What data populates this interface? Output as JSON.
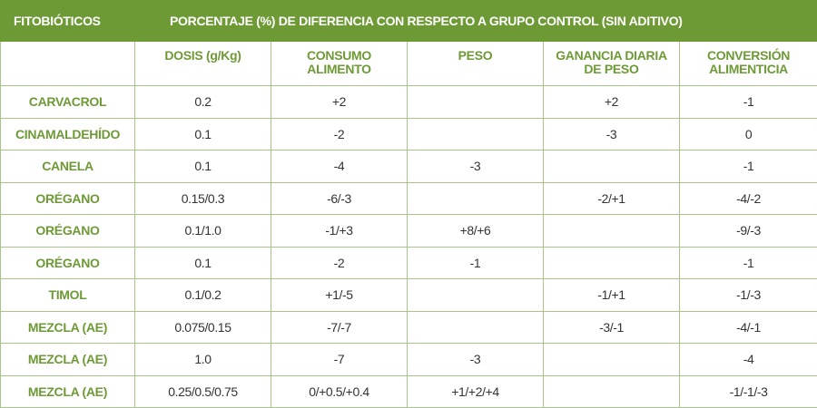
{
  "header": {
    "col0": "FITOBIÓTICOS",
    "span": "PORCENTAJE (%) DE DIFERENCIA CON RESPECTO A GRUPO CONTROL (SIN ADITIVO)"
  },
  "subheader": {
    "dosis": "DOSIS (g/Kg)",
    "consumo_l1": "CONSUMO",
    "consumo_l2": "ALIMENTO",
    "peso": "PESO",
    "ganancia_l1": "GANANCIA DIARIA",
    "ganancia_l2": "DE PESO",
    "conversion_l1": "CONVERSIÓN",
    "conversion_l2": "ALIMENTICIA"
  },
  "rows": [
    {
      "name": "CARVACROL",
      "dosis": "0.2",
      "consumo": "+2",
      "peso": "",
      "ganancia": "+2",
      "conversion": "-1"
    },
    {
      "name": "CINAMALDEHÍDO",
      "dosis": "0.1",
      "consumo": "-2",
      "peso": "",
      "ganancia": "-3",
      "conversion": "0"
    },
    {
      "name": "CANELA",
      "dosis": "0.1",
      "consumo": "-4",
      "peso": "-3",
      "ganancia": "",
      "conversion": "-1"
    },
    {
      "name": "ORÉGANO",
      "dosis": "0.15/0.3",
      "consumo": "-6/-3",
      "peso": "",
      "ganancia": "-2/+1",
      "conversion": "-4/-2"
    },
    {
      "name": "ORÉGANO",
      "dosis": "0.1/1.0",
      "consumo": "-1/+3",
      "peso": "+8/+6",
      "ganancia": "",
      "conversion": "-9/-3"
    },
    {
      "name": "ORÉGANO",
      "dosis": "0.1",
      "consumo": "-2",
      "peso": "-1",
      "ganancia": "",
      "conversion": "-1"
    },
    {
      "name": "TIMOL",
      "dosis": "0.1/0.2",
      "consumo": "+1/-5",
      "peso": "",
      "ganancia": "-1/+1",
      "conversion": "-1/-3"
    },
    {
      "name": "MEZCLA (AE)",
      "dosis": "0.075/0.15",
      "consumo": "-7/-7",
      "peso": "",
      "ganancia": "-3/-1",
      "conversion": "-4/-1"
    },
    {
      "name": "MEZCLA (AE)",
      "dosis": "1.0",
      "consumo": "-7",
      "peso": "-3",
      "ganancia": "",
      "conversion": "-4"
    },
    {
      "name": "MEZCLA (AE)",
      "dosis": "0.25/0.5/0.75",
      "consumo": "0/+0.5/+0.4",
      "peso": "+1/+2/+4",
      "ganancia": "",
      "conversion": "-1/-1/-3"
    }
  ],
  "colors": {
    "header_bg": "#6e9a36",
    "border": "#a9c48a",
    "label_text": "#6e9a36"
  }
}
